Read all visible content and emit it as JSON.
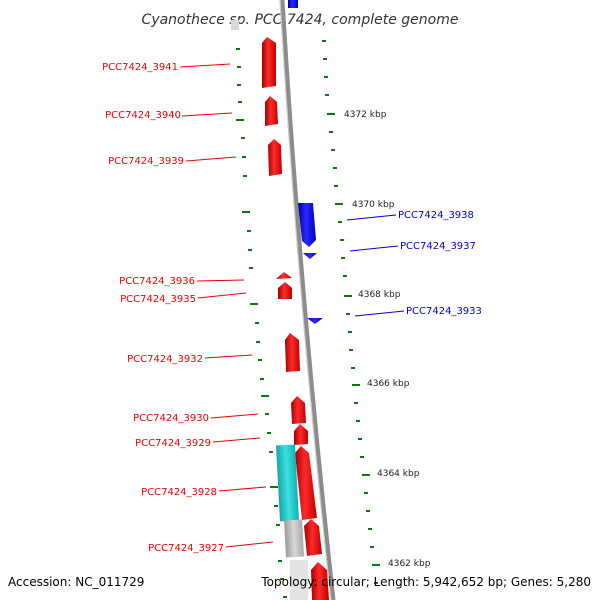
{
  "header": {
    "title": "Cyanothece sp. PCC 7424, complete genome"
  },
  "footer": {
    "accession": "Accession: NC_011729",
    "summary": "Topology: circular; Length: 5,942,652 bp; Genes: 5,280"
  },
  "scale_labels": [
    "4372 kbp",
    "4370 kbp",
    "4368 kbp",
    "4366 kbp",
    "4364 kbp",
    "4362 kbp"
  ],
  "genes_forward": [
    "PCC7424_3941",
    "PCC7424_3940",
    "PCC7424_3939",
    "PCC7424_3936",
    "PCC7424_3935",
    "PCC7424_3932",
    "PCC7424_3930",
    "PCC7424_3929",
    "PCC7424_3928",
    "PCC7424_3927"
  ],
  "genes_reverse": [
    "PCC7424_3938",
    "PCC7424_3937",
    "PCC7424_3933"
  ],
  "colors": {
    "forward_gene": "#ee0000",
    "reverse_gene": "#0000dd",
    "tick_green": "#0a7a0a",
    "backbone": "#8c8c8c",
    "feature_cyan": "#21c7c7",
    "feature_gray": "#b8b8b8"
  }
}
